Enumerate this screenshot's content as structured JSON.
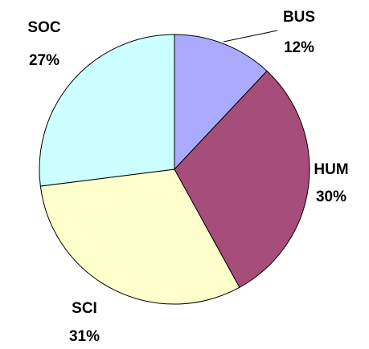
{
  "chart_data": {
    "type": "pie",
    "categories": [
      "BUS",
      "HUM",
      "SCI",
      "SOC"
    ],
    "values": [
      12,
      30,
      31,
      27
    ],
    "value_labels": [
      "12%",
      "30%",
      "31%",
      "27%"
    ],
    "colors": [
      "#aaaaff",
      "#a64d7a",
      "#ffffcc",
      "#ccffff"
    ]
  }
}
